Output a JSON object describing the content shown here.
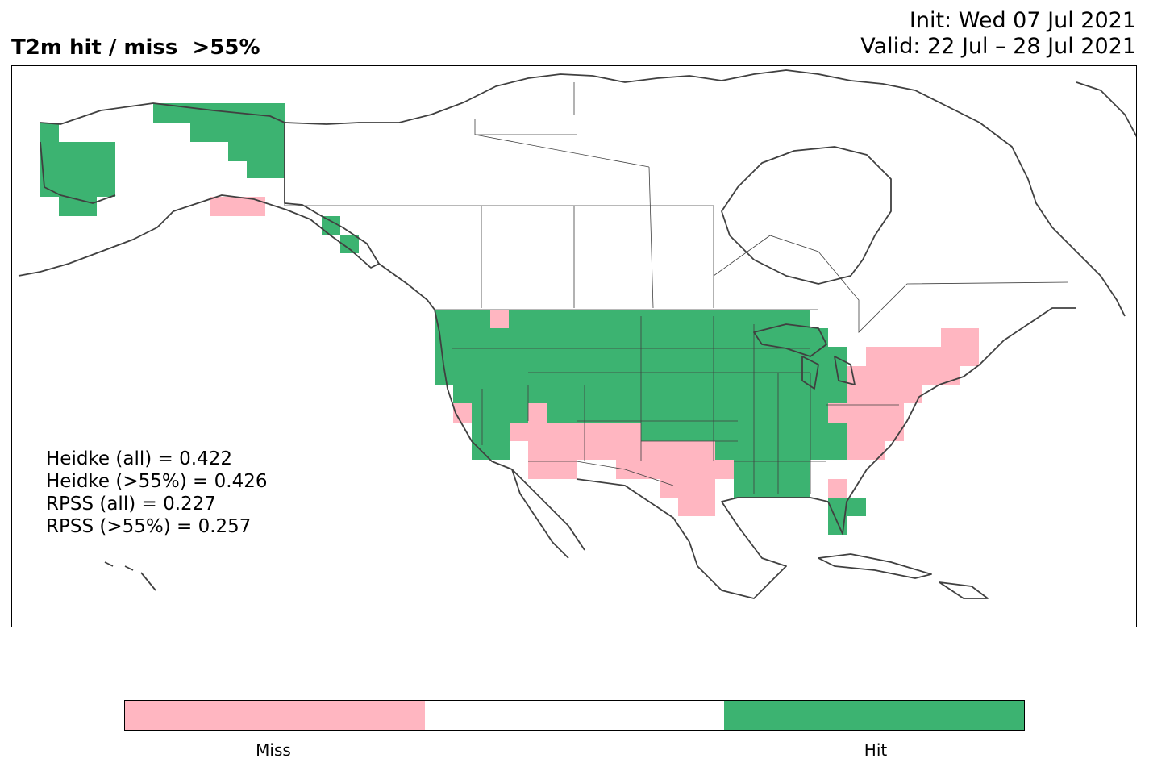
{
  "title": "T2m hit / miss  >55%",
  "init_label": "Init: Wed 07 Jul 2021",
  "valid_label": "Valid: 22 Jul – 28 Jul 2021",
  "scores": [
    "Heidke (all) = 0.422",
    "Heidke (>55%) = 0.426",
    "RPSS (all) = 0.227",
    "RPSS (>55%) = 0.257"
  ],
  "legend": {
    "categories": [
      "Miss",
      "",
      "Hit"
    ],
    "colors": [
      "#ffb6c1",
      "#ffffff",
      "#3cb371"
    ]
  },
  "colors": {
    "miss": "#ffb6c1",
    "hit": "#3cb371",
    "coast": "#404040"
  }
}
